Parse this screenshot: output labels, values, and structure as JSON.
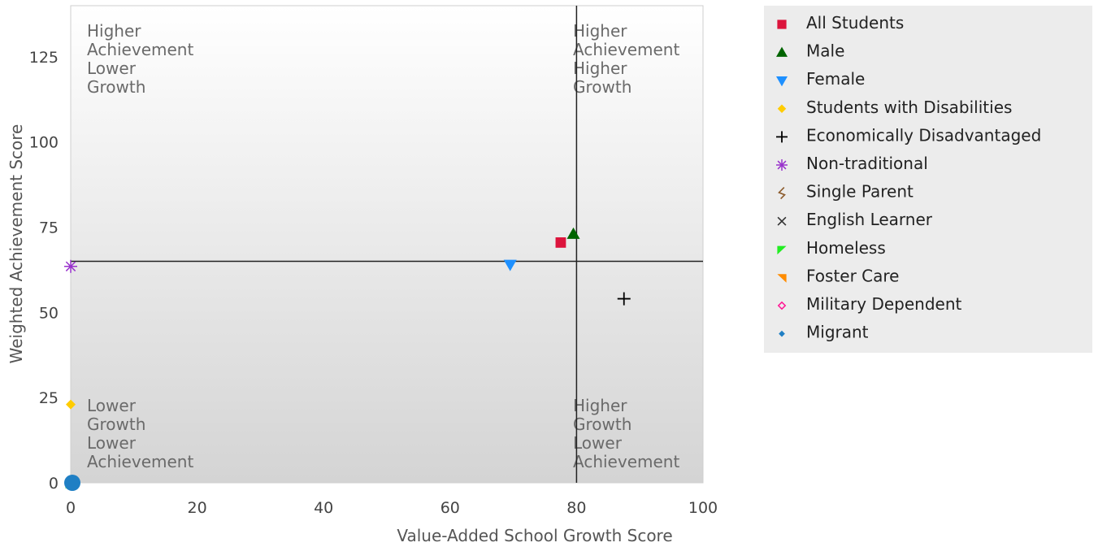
{
  "chart_data": {
    "type": "scatter",
    "xlabel": "Value-Added School Growth Score",
    "ylabel": "Weighted Achievement Score",
    "xlim": [
      0,
      100
    ],
    "ylim": [
      0,
      140
    ],
    "x_ticks": [
      0,
      20,
      40,
      60,
      80,
      100
    ],
    "y_ticks": [
      0,
      25,
      50,
      75,
      100,
      125
    ],
    "reference_lines": {
      "x": 80,
      "y": 65
    },
    "legend_position": "right",
    "quadrant_labels": {
      "top_left": [
        "Higher",
        "Achievement",
        "Lower",
        "Growth"
      ],
      "top_right": [
        "Higher",
        "Achievement",
        "Higher",
        "Growth"
      ],
      "bottom_left": [
        "Lower",
        "Growth",
        "Lower",
        "Achievement"
      ],
      "bottom_right": [
        "Higher",
        "Growth",
        "Lower",
        "Achievement"
      ]
    },
    "series": [
      {
        "name": "All Students",
        "marker": "square",
        "color": "#dc143c",
        "points": [
          [
            77.5,
            70.5
          ]
        ]
      },
      {
        "name": "Male",
        "marker": "triangle-up",
        "color": "#006400",
        "points": [
          [
            79.5,
            73
          ]
        ]
      },
      {
        "name": "Female",
        "marker": "triangle-down",
        "color": "#1e90ff",
        "points": [
          [
            69.5,
            64
          ]
        ]
      },
      {
        "name": "Students with Disabilities",
        "marker": "diamond",
        "color": "#ffcc00",
        "points": [
          [
            0,
            23
          ]
        ]
      },
      {
        "name": "Economically Disadvantaged",
        "marker": "plus",
        "color": "#000000",
        "points": [
          [
            87.5,
            54
          ]
        ]
      },
      {
        "name": "Non-traditional",
        "marker": "asterisk",
        "color": "#9932cc",
        "points": [
          [
            0,
            63.5
          ]
        ]
      },
      {
        "name": "Single Parent",
        "marker": "squiggle",
        "color": "#8b5a2b",
        "points": [
          [
            0,
            0
          ]
        ]
      },
      {
        "name": "English Learner",
        "marker": "x",
        "color": "#333333",
        "points": [
          [
            0,
            0
          ]
        ]
      },
      {
        "name": "Homeless",
        "marker": "tri-corner-left",
        "color": "#22ee22",
        "points": [
          [
            0,
            0
          ]
        ]
      },
      {
        "name": "Foster Care",
        "marker": "tri-corner-right",
        "color": "#ff8c00",
        "points": [
          [
            0,
            0
          ]
        ]
      },
      {
        "name": "Military Dependent",
        "marker": "diamond-open",
        "color": "#ff1493",
        "points": [
          [
            0,
            0
          ]
        ]
      },
      {
        "name": "Migrant",
        "marker": "diamond-small",
        "color": "#1f7fc4",
        "points": [
          [
            0,
            0
          ]
        ]
      }
    ]
  }
}
